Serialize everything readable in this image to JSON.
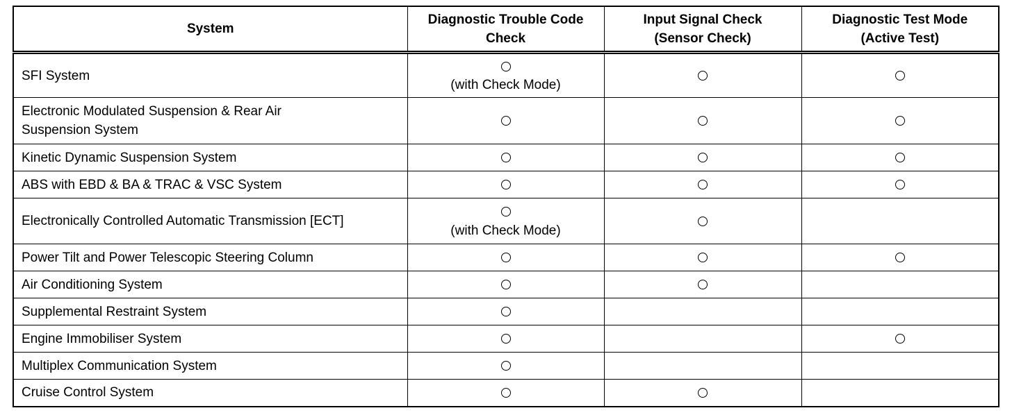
{
  "headers": [
    "System",
    "Diagnostic Trouble Code Check",
    "Input Signal Check (Sensor Check)",
    "Diagnostic Test Mode (Active Test)"
  ],
  "header_lines": [
    [
      "System"
    ],
    [
      "Diagnostic Trouble Code",
      "Check"
    ],
    [
      "Input Signal Check",
      "(Sensor Check)"
    ],
    [
      "Diagnostic Test Mode",
      "(Active Test)"
    ]
  ],
  "mark_symbol": "circle",
  "note_text": "(with Check Mode)",
  "rows": [
    {
      "system": [
        "SFI System"
      ],
      "dtc": true,
      "dtc_note": "(with Check Mode)",
      "input": true,
      "active": true
    },
    {
      "system": [
        "Electronic Modulated Suspension & Rear Air",
        "Suspension System"
      ],
      "dtc": true,
      "input": true,
      "active": true
    },
    {
      "system": [
        "Kinetic Dynamic Suspension System"
      ],
      "dtc": true,
      "input": true,
      "active": true
    },
    {
      "system": [
        "ABS with EBD & BA & TRAC & VSC System"
      ],
      "dtc": true,
      "input": true,
      "active": true
    },
    {
      "system": [
        "Electronically Controlled Automatic Transmission [ECT]"
      ],
      "dtc": true,
      "dtc_note": "(with Check Mode)",
      "input": true,
      "active": false
    },
    {
      "system": [
        "Power Tilt and Power Telescopic Steering Column"
      ],
      "dtc": true,
      "input": true,
      "active": true
    },
    {
      "system": [
        "Air Conditioning System"
      ],
      "dtc": true,
      "input": true,
      "active": false
    },
    {
      "system": [
        "Supplemental Restraint System"
      ],
      "dtc": true,
      "input": false,
      "active": false
    },
    {
      "system": [
        "Engine Immobiliser System"
      ],
      "dtc": true,
      "input": false,
      "active": true
    },
    {
      "system": [
        "Multiplex Communication System"
      ],
      "dtc": true,
      "input": false,
      "active": false
    },
    {
      "system": [
        "Cruise Control System"
      ],
      "dtc": true,
      "input": true,
      "active": false
    }
  ]
}
